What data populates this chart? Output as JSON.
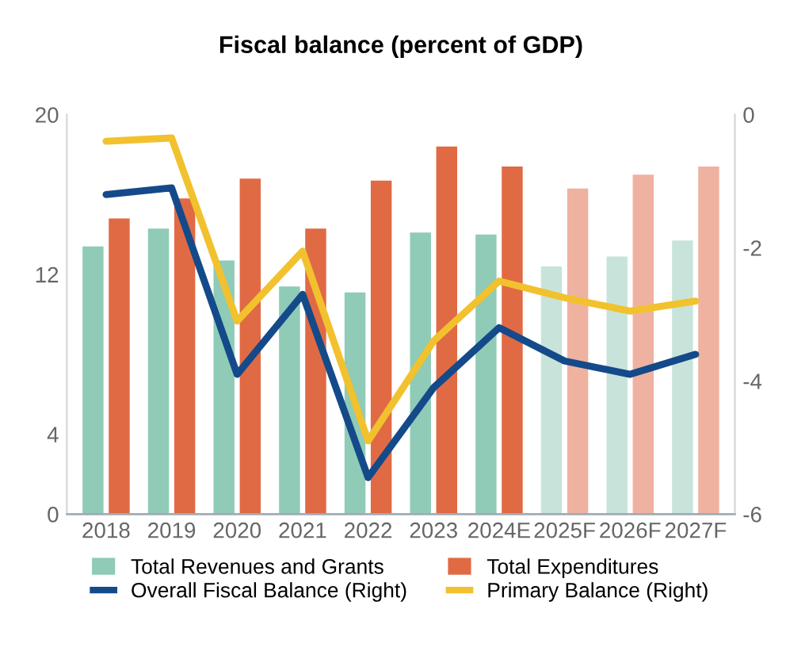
{
  "chart_data": {
    "type": "bar",
    "title": "Fiscal balance (percent of GDP)",
    "categories": [
      "2018",
      "2019",
      "2020",
      "2021",
      "2022",
      "2023",
      "2024E",
      "2025F",
      "2026F",
      "2027F"
    ],
    "series": [
      {
        "name": "Total Revenues and Grants",
        "color": "#8fcbb6",
        "colors": [
          "#8fcbb6",
          "#8fcbb6",
          "#8fcbb6",
          "#8fcbb6",
          "#8fcbb6",
          "#8fcbb6",
          "#8fcbb6",
          "#c8e4da",
          "#c8e4da",
          "#c8e4da"
        ],
        "values": [
          13.4,
          14.3,
          12.7,
          11.4,
          11.1,
          14.1,
          14.0,
          12.4,
          12.9,
          13.7
        ]
      },
      {
        "name": "Total Expenditures",
        "color": "#e06a44",
        "colors": [
          "#e06a44",
          "#e06a44",
          "#e06a44",
          "#e06a44",
          "#e06a44",
          "#e06a44",
          "#e06a44",
          "#efb2a0",
          "#efb2a0",
          "#efb2a0"
        ],
        "values": [
          14.8,
          15.8,
          16.8,
          14.3,
          16.7,
          18.4,
          17.4,
          16.3,
          17.0,
          17.4
        ]
      },
      {
        "name": "Overall Fiscal Balance (Right)",
        "type": "line",
        "axis": "y2",
        "color": "#144a8a",
        "values": [
          -1.2,
          -1.1,
          -3.9,
          -2.7,
          -5.45,
          -4.1,
          -3.2,
          -3.7,
          -3.9,
          -3.6
        ]
      },
      {
        "name": "Primary Balance (Right)",
        "type": "line",
        "axis": "y2",
        "color": "#f2c12e",
        "values": [
          -0.4,
          -0.35,
          -3.1,
          -2.05,
          -4.9,
          -3.4,
          -2.5,
          -2.75,
          -2.95,
          -2.8
        ]
      }
    ],
    "ylim": [
      0,
      20
    ],
    "yticks": [
      0,
      4,
      12,
      20
    ],
    "y2lim": [
      -6,
      0
    ],
    "y2ticks": [
      -6,
      -4,
      -2,
      0
    ],
    "grid": false,
    "legend": "bottom",
    "marker": "none",
    "line_style": "solid"
  }
}
